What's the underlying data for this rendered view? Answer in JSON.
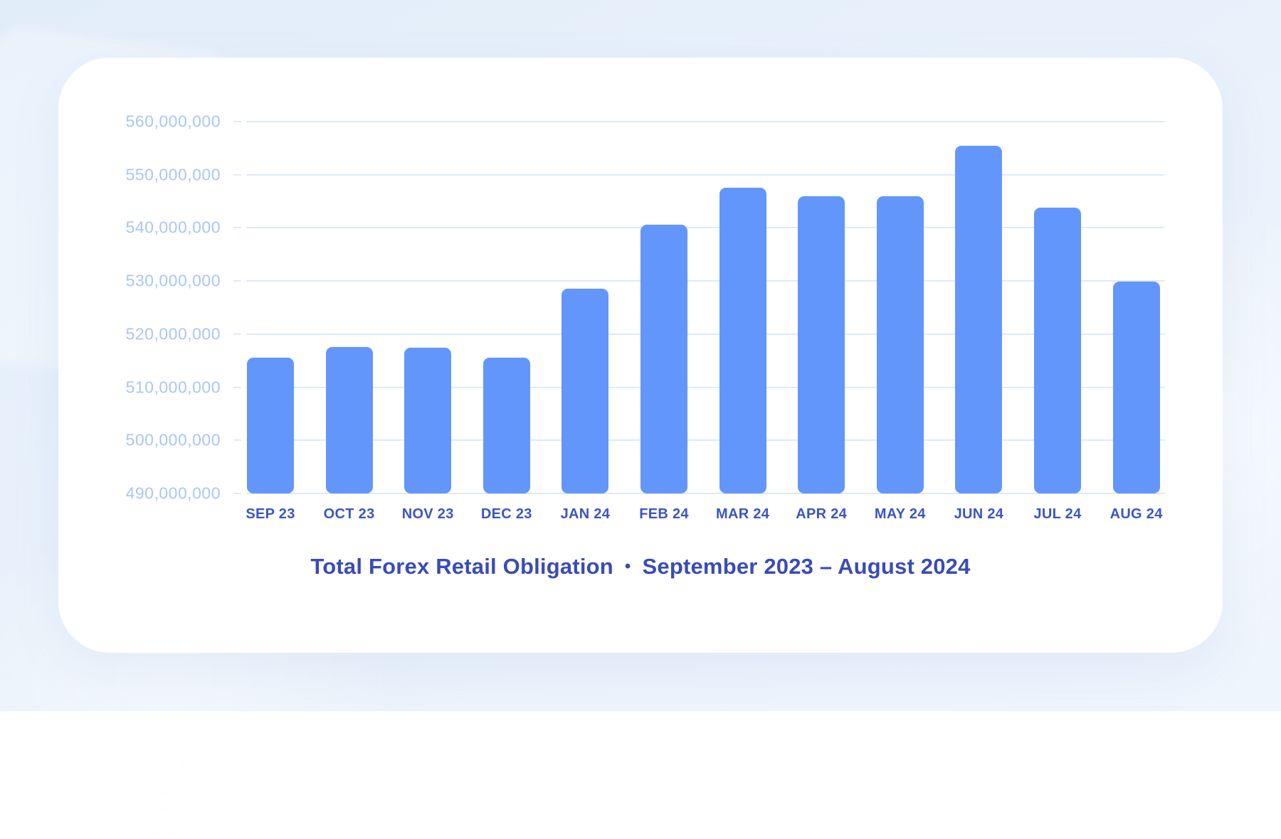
{
  "page": {
    "background_color": "#e8f1fb",
    "card_color": "#ffffff"
  },
  "chart_data": {
    "type": "bar",
    "title": "Total Forex Retail Obligation",
    "title_separator": "•",
    "subtitle": "September 2023 – August 2024",
    "xlabel": "",
    "ylabel": "",
    "categories": [
      "SEP 23",
      "OCT 23",
      "NOV 23",
      "DEC 23",
      "JAN 24",
      "FEB 24",
      "MAR 24",
      "APR 24",
      "MAY 24",
      "JUN 24",
      "JUL 24",
      "AUG 24"
    ],
    "values": [
      515600000,
      517600000,
      517500000,
      515500000,
      528500000,
      540600000,
      547600000,
      546000000,
      545900000,
      555400000,
      543800000,
      529900000
    ],
    "ylim": [
      490000000,
      560000000
    ],
    "ytick_step": 10000000,
    "ytick_labels": [
      "560,000,000",
      "550,000,000",
      "540,000,000",
      "530,000,000",
      "520,000,000",
      "510,000,000",
      "500,000,000",
      "490,000,000"
    ],
    "grid": true,
    "legend": "none",
    "colors": {
      "bar": "#6396fa",
      "gridline": "#dee9f9",
      "y_label": "#a9c6f5",
      "x_label": "#3b55c4",
      "title": "#3a4bb8"
    }
  }
}
